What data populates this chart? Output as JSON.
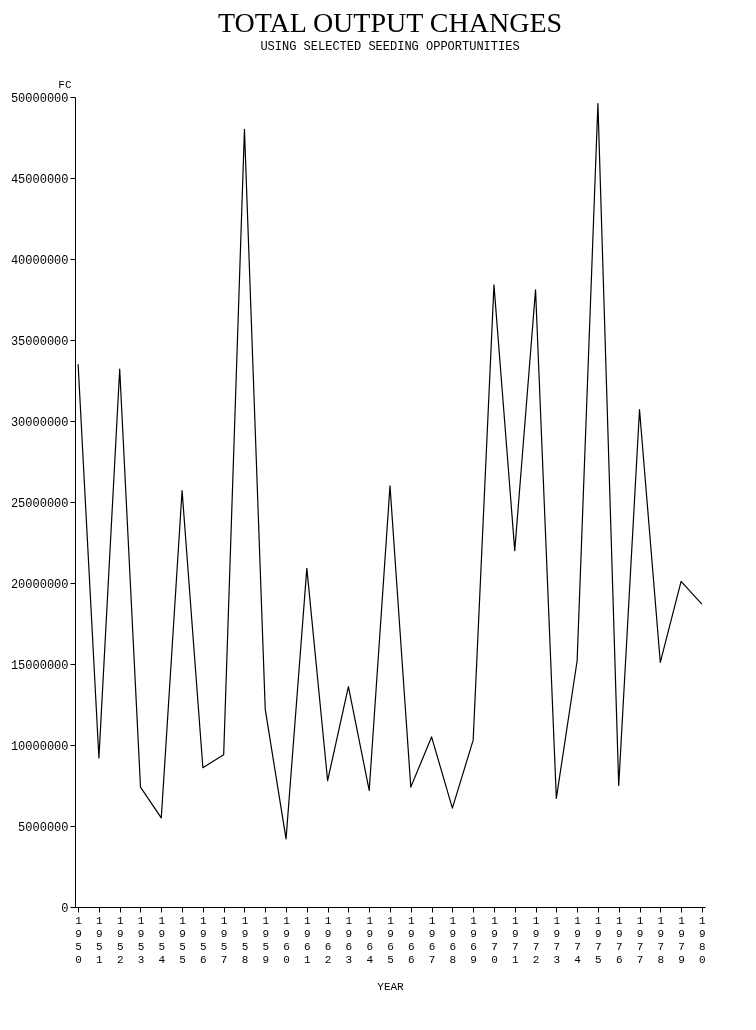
{
  "chart_data": {
    "type": "line",
    "title": "TOTAL OUTPUT CHANGES",
    "subtitle": "USING SELECTED SEEDING OPPORTUNITIES",
    "xlabel": "YEAR",
    "ylabel": "FC",
    "categories": [
      "1950",
      "1951",
      "1952",
      "1953",
      "1954",
      "1955",
      "1956",
      "1957",
      "1958",
      "1959",
      "1960",
      "1961",
      "1962",
      "1963",
      "1964",
      "1965",
      "1966",
      "1967",
      "1968",
      "1969",
      "1970",
      "1971",
      "1972",
      "1973",
      "1974",
      "1975",
      "1976",
      "1977",
      "1978",
      "1979",
      "1980"
    ],
    "series": [
      {
        "color": "#000000",
        "values": [
          33500000,
          9200000,
          33200000,
          7400000,
          5500000,
          25700000,
          8600000,
          9400000,
          48000000,
          12200000,
          4200000,
          20900000,
          7800000,
          13600000,
          7200000,
          26000000,
          7400000,
          10500000,
          6100000,
          10300000,
          38400000,
          22000000,
          38100000,
          6700000,
          15200000,
          49600000,
          7500000,
          30700000,
          15100000,
          20100000,
          18700000
        ]
      }
    ],
    "ylim": [
      0,
      50000000
    ],
    "yticks": [
      0,
      5000000,
      10000000,
      15000000,
      20000000,
      25000000,
      30000000,
      35000000,
      40000000,
      45000000,
      50000000
    ],
    "grid": false,
    "marker": "none",
    "line_style": "solid"
  }
}
